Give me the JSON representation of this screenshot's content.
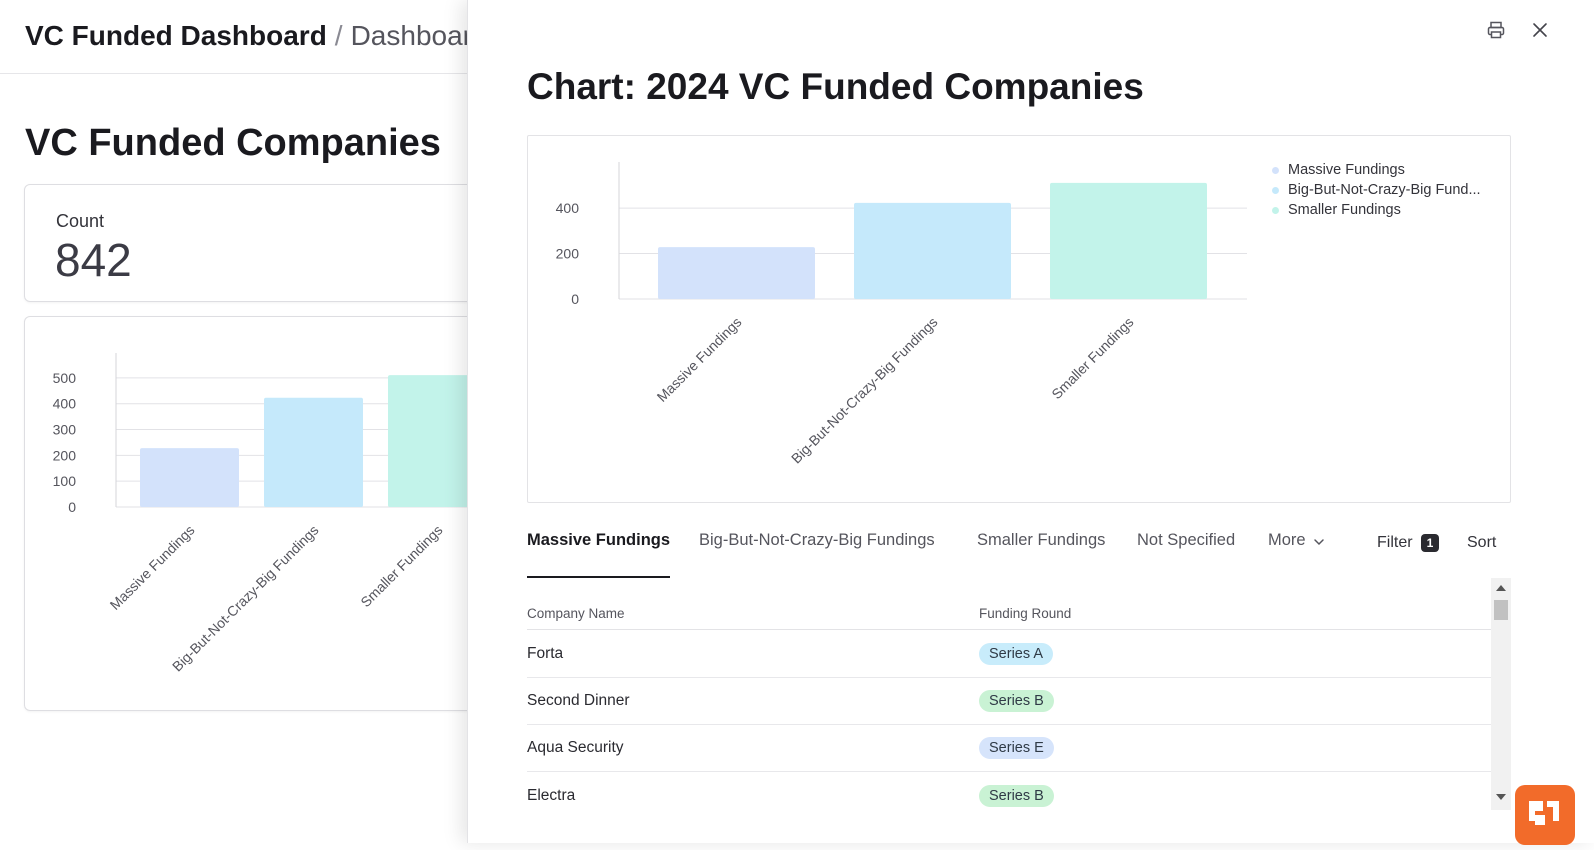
{
  "header": {
    "app_name": "VC Funded Dashboard",
    "separator": "/",
    "current_page": "Dashboard"
  },
  "dashboard": {
    "title": "VC Funded Companies",
    "count_card": {
      "label": "Count",
      "value": "842"
    }
  },
  "icons": {
    "print": "printer-icon",
    "close": "close-icon",
    "more_chevron": "chevron-down-icon",
    "help": "help-widget-icon"
  },
  "colors": {
    "massive": "#d3e2fb",
    "big": "#c5e9fb",
    "smaller": "#c2f3ea",
    "pill_blue": "#c8ecfb",
    "pill_green": "#c9f2d4",
    "pill_lavender": "#d6e4fb",
    "accent_orange": "#f26b2a"
  },
  "panel": {
    "title": "Chart: 2024 VC Funded Companies",
    "legend": [
      {
        "label": "Massive Fundings",
        "color": "#d3e2fb"
      },
      {
        "label": "Big-But-Not-Crazy-Big Fund...",
        "color": "#c5e9fb"
      },
      {
        "label": "Smaller Fundings",
        "color": "#c2f3ea"
      }
    ],
    "tabs": [
      "Massive Fundings",
      "Big-But-Not-Crazy-Big Fundings",
      "Smaller Fundings",
      "Not Specified"
    ],
    "more_label": "More",
    "filter_label": "Filter",
    "filter_count": "1",
    "sort_label": "Sort",
    "table": {
      "columns": [
        "Company Name",
        "Funding Round"
      ],
      "rows": [
        {
          "name": "Forta",
          "round": "Series A",
          "pill_color": "#c8ecfb"
        },
        {
          "name": "Second Dinner",
          "round": "Series B",
          "pill_color": "#c9f2d4"
        },
        {
          "name": "Aqua Security",
          "round": "Series E",
          "pill_color": "#d6e4fb"
        },
        {
          "name": "Electra",
          "round": "Series B",
          "pill_color": "#c9f2d4"
        }
      ]
    }
  },
  "chart_data": [
    {
      "id": "dashboard-chart",
      "type": "bar",
      "title": "",
      "categories": [
        "Massive Fundings",
        "Big-But-Not-Crazy-Big Fundings",
        "Smaller Fundings"
      ],
      "values": [
        228,
        423,
        511
      ],
      "colors": [
        "#d3e2fb",
        "#c5e9fb",
        "#c2f3ea"
      ],
      "ylim": [
        0,
        550
      ],
      "yticks": [
        0,
        100,
        200,
        300,
        400,
        500
      ],
      "xlabel": "",
      "ylabel": "",
      "grid": true
    },
    {
      "id": "panel-chart",
      "type": "bar",
      "title": "Chart: 2024 VC Funded Companies",
      "categories": [
        "Massive Fundings",
        "Big-But-Not-Crazy-Big Fundings",
        "Smaller Fundings"
      ],
      "values": [
        228,
        423,
        511
      ],
      "colors": [
        "#d3e2fb",
        "#c5e9fb",
        "#c2f3ea"
      ],
      "ylim": [
        0,
        550
      ],
      "yticks": [
        0,
        200,
        400
      ],
      "xlabel": "",
      "ylabel": "",
      "grid": true,
      "legend_position": "top-right"
    }
  ]
}
